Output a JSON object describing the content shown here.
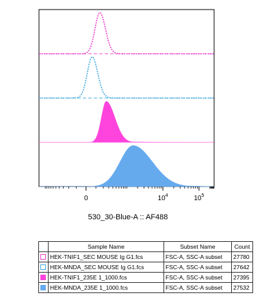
{
  "chart_data": {
    "type": "area",
    "subtype": "staggered-histogram-overlay",
    "xlabel": "530_30-Blue-A :: AF488",
    "x_scale": "biexponential",
    "x_ticks": [
      {
        "value": 0,
        "label": "0"
      },
      {
        "value": 10000,
        "label": "10",
        "exp": "4"
      },
      {
        "value": 100000,
        "label": "10",
        "exp": "5"
      }
    ],
    "xlim": [
      -1500,
      262144
    ],
    "columns": [
      "Sample Name",
      "Subset Name",
      "Count"
    ],
    "series": [
      {
        "name": "HEK-TNIF1_SEC MOUSE Ig G1.fcs",
        "subset": "FSC-A, SSC-A subset",
        "count": "27780",
        "color": "#ee44cc",
        "style": "dashed",
        "filled": false,
        "peak": 150,
        "width_left": 0.028,
        "width_right": 0.032,
        "tail": 0.0
      },
      {
        "name": "HEK-MNDA_SEC MOUSE Ig G1.fcs",
        "subset": "FSC-A, SSC-A subset",
        "count": "27642",
        "color": "#44aadd",
        "style": "dashed",
        "filled": false,
        "peak": 60,
        "width_left": 0.028,
        "width_right": 0.032,
        "tail": 0.0
      },
      {
        "name": "HEK-TNIF1_235E 1_1000.fcs",
        "subset": "FSC-A, SSC-A subset",
        "count": "27395",
        "color": "#ff44dd",
        "style": "solid",
        "filled": true,
        "peak": 250,
        "width_left": 0.028,
        "width_right": 0.05,
        "tail": 0.04
      },
      {
        "name": "HEK-MNDA_235E 1_1000.fcs",
        "subset": "FSC-A, SSC-A subset",
        "count": "27532",
        "color": "#66aaee",
        "style": "solid",
        "filled": true,
        "peak": 1500,
        "width_left": 0.075,
        "width_right": 0.11,
        "tail": 0.22
      }
    ]
  }
}
